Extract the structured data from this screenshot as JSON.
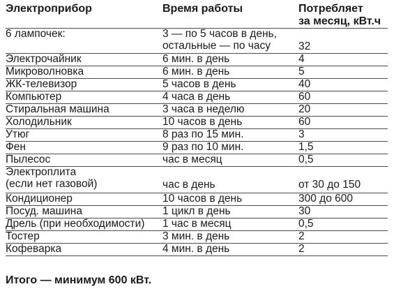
{
  "headers": {
    "col1": "Электроприбор",
    "col2": "Время работы",
    "col3_line1": "Потребляет",
    "col3_line2": "за месяц, кВт.ч"
  },
  "rows": [
    {
      "device": "6 лампочек:",
      "time_line1": "3 — по 5 часов в день,",
      "time_line2": "остальные — по часу",
      "kwh": "32"
    },
    {
      "device": "Электрочайник",
      "time": "6 мин. в день",
      "kwh": "4"
    },
    {
      "device": "Микроволновка",
      "time": "6 мин. в день",
      "kwh": "5"
    },
    {
      "device": "ЖК-телевизор",
      "time": "5 часов в день",
      "kwh": "40"
    },
    {
      "device": "Компьютер",
      "time": "4 часа в день",
      "kwh": "60"
    },
    {
      "device": "Стиральная машина",
      "time": "3 часа в неделю",
      "kwh": "20"
    },
    {
      "device": "Холодильник",
      "time": "10 часов в день",
      "kwh": "60"
    },
    {
      "device": "Утюг",
      "time": "8 раз по 15 мин.",
      "kwh": "3"
    },
    {
      "device": "Фен",
      "time": "9 раз по 10 мин.",
      "kwh": "1,5"
    },
    {
      "device": "Пылесос",
      "time": "час в месяц",
      "kwh": "0,5"
    },
    {
      "device_line1": "Электроплита",
      "device_line2": "(если нет газовой)",
      "time": "час в день",
      "kwh": "от 30 до 150"
    },
    {
      "device": "Кондиционер",
      "time": "10 часов в день",
      "kwh": "300 до 600"
    },
    {
      "device": "Посуд. машина",
      "time": "1 цикл в день",
      "kwh": "30"
    },
    {
      "device": "Дрель (при необходимости)",
      "time": "1 час в месяц",
      "kwh": "0,5"
    },
    {
      "device": "Тостер",
      "time": "3 мин. в день",
      "kwh": "2"
    },
    {
      "device": "Кофеварка",
      "time": "4 мин. в день",
      "kwh": "2"
    }
  ],
  "total": "Итого — минимум 600 кВт."
}
